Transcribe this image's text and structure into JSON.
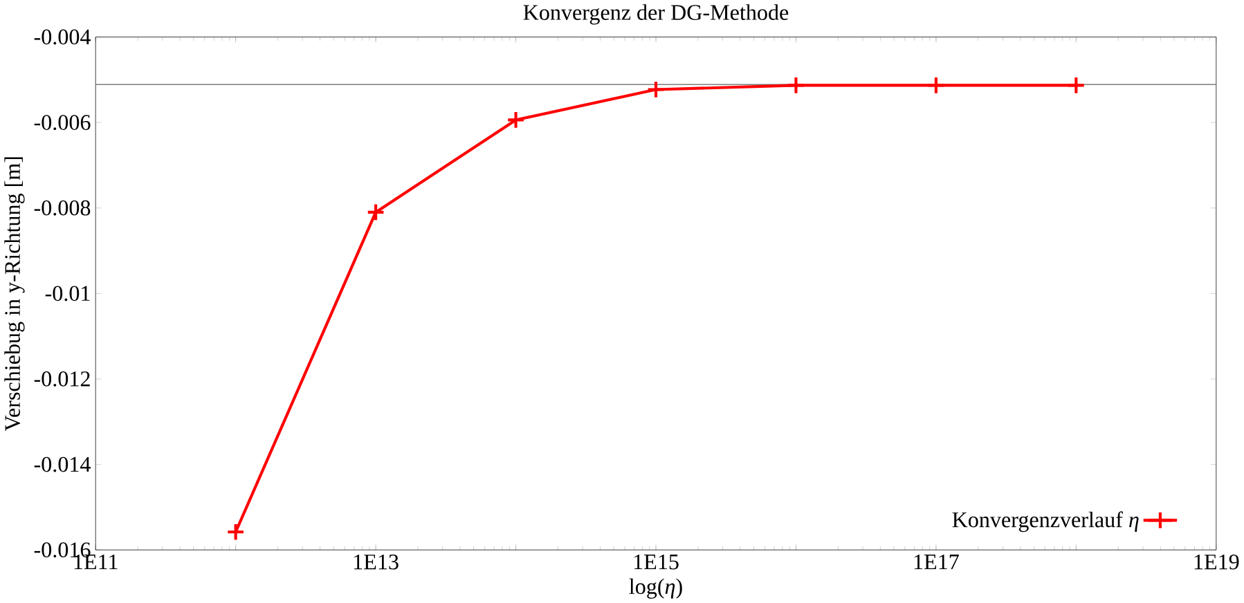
{
  "chart_data": {
    "type": "line",
    "title": "Konvergenz der DG-Methode",
    "xlabel": "log(*η*)",
    "ylabel": "Verschiebug in y-Richtung [m]",
    "x": [
      1000000000000.0,
      10000000000000.0,
      100000000000000.0,
      1000000000000000.0,
      1e+16,
      1e+17,
      1e+18
    ],
    "series": [
      {
        "name": "Konvergenzverlauf *η*",
        "color": "#ff0000",
        "values": [
          -0.01558,
          -0.0081,
          -0.00594,
          -0.00523,
          -0.00513,
          -0.00513,
          -0.00513
        ]
      }
    ],
    "log": "x",
    "xlim": [
      100000000000.0,
      1e+19
    ],
    "xticks": [
      {
        "value": 100000000000.0,
        "label": "1E11"
      },
      {
        "value": 1000000000000.0,
        "label": null
      },
      {
        "value": 10000000000000.0,
        "label": "1E13"
      },
      {
        "value": 100000000000000.0,
        "label": null
      },
      {
        "value": 1000000000000000.0,
        "label": "1E15"
      },
      {
        "value": 1e+16,
        "label": null
      },
      {
        "value": 1e+17,
        "label": "1E17"
      },
      {
        "value": 1e+18,
        "label": null
      },
      {
        "value": 1e+19,
        "label": "1E19"
      }
    ],
    "ylim": [
      -0.016,
      -0.004
    ],
    "yticks": [
      -0.016,
      -0.014,
      -0.012,
      -0.01,
      -0.008,
      -0.006,
      -0.004
    ],
    "ref_lines": [
      {
        "axis": "y",
        "value": -0.00511,
        "color": "#808080"
      }
    ],
    "legend": "bottom right",
    "marker": "cross",
    "line_style": "solid",
    "grid": false
  }
}
